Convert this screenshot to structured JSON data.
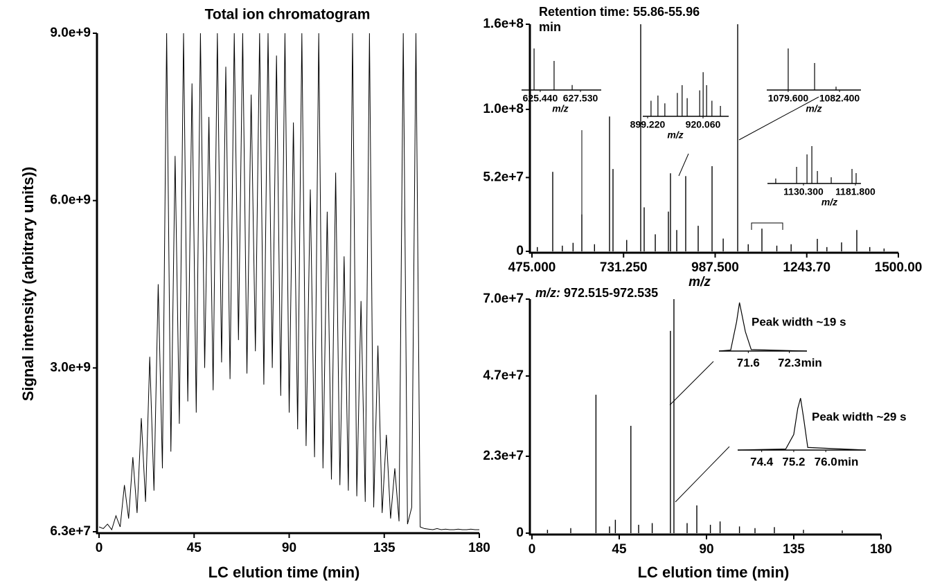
{
  "chart_data": [
    {
      "type": "line",
      "title": "Total ion chromatogram",
      "x_label": "LC elution time (min)",
      "y_label": "Signal intensity (arbitrary units))",
      "xlim": [
        0,
        180
      ],
      "xticks": [
        0,
        45,
        90,
        135,
        180
      ],
      "ylim": [
        63000000.0,
        9000000000.0
      ],
      "yticks": [
        {
          "value": 63000000.0,
          "label": "6.3e+7"
        },
        {
          "value": 3000000000.0,
          "label": "3.0e+9"
        },
        {
          "value": 6000000000.0,
          "label": "6.0e+9"
        },
        {
          "value": 9000000000.0,
          "label": "9.0e+9"
        }
      ],
      "color": "#000000",
      "grid": false,
      "x": [
        0,
        2,
        4,
        6,
        8,
        10,
        12,
        14,
        16,
        18,
        20,
        22,
        24,
        26,
        28,
        30,
        32,
        34,
        36,
        38,
        40,
        42,
        44,
        46,
        48,
        50,
        52,
        54,
        56,
        58,
        60,
        62,
        64,
        66,
        68,
        70,
        72,
        74,
        76,
        78,
        80,
        82,
        84,
        86,
        88,
        90,
        92,
        94,
        96,
        98,
        100,
        102,
        104,
        106,
        108,
        110,
        112,
        114,
        116,
        118,
        120,
        122,
        124,
        126,
        128,
        130,
        132,
        134,
        136,
        138,
        140,
        142,
        144,
        146,
        148,
        150,
        152,
        154,
        156,
        158,
        160,
        162,
        164,
        166,
        168,
        170,
        172,
        174,
        176,
        178,
        180
      ],
      "values": [
        150000000.0,
        120000000.0,
        200000000.0,
        100000000.0,
        350000000.0,
        150000000.0,
        900000000.0,
        300000000.0,
        1400000000.0,
        400000000.0,
        2100000000.0,
        600000000.0,
        3200000000.0,
        800000000.0,
        4500000000.0,
        1200000000.0,
        9000000000.0,
        1500000000.0,
        6800000000.0,
        2000000000.0,
        9000000000.0,
        2400000000.0,
        8100000000.0,
        2200000000.0,
        9000000000.0,
        3000000000.0,
        7500000000.0,
        2600000000.0,
        9000000000.0,
        3100000000.0,
        8400000000.0,
        2800000000.0,
        9000000000.0,
        3500000000.0,
        9000000000.0,
        2900000000.0,
        7900000000.0,
        3300000000.0,
        9000000000.0,
        2700000000.0,
        9000000000.0,
        3000000000.0,
        8600000000.0,
        2500000000.0,
        9000000000.0,
        2200000000.0,
        7400000000.0,
        1900000000.0,
        9000000000.0,
        1600000000.0,
        6200000000.0,
        1400000000.0,
        9000000000.0,
        1200000000.0,
        5800000000.0,
        1000000000.0,
        6500000000.0,
        900000000.0,
        5000000000.0,
        800000000.0,
        9000000000.0,
        700000000.0,
        4200000000.0,
        600000000.0,
        9000000000.0,
        500000000.0,
        3400000000.0,
        400000000.0,
        1800000000.0,
        300000000.0,
        1200000000.0,
        250000000.0,
        9000000000.0,
        200000000.0,
        500000000.0,
        9000000000.0,
        150000000.0,
        120000000.0,
        110000000.0,
        100000000.0,
        120000000.0,
        100000000.0,
        110000000.0,
        100000000.0,
        100000000.0,
        110000000.0,
        100000000.0,
        100000000.0,
        110000000.0,
        100000000.0,
        100000000.0
      ]
    },
    {
      "type": "stem",
      "title": "Retention time:  55.86-55.96 min",
      "x_label": "m/z",
      "xlim": [
        475,
        1500
      ],
      "xticks": [
        {
          "value": 475,
          "label": "475.000"
        },
        {
          "value": 731.25,
          "label": "731.250"
        },
        {
          "value": 987.5,
          "label": "987.500"
        },
        {
          "value": 1243.7,
          "label": "1243.70"
        },
        {
          "value": 1500,
          "label": "1500.00"
        }
      ],
      "ylim": [
        0,
        160000000.0
      ],
      "yticks": [
        0,
        {
          "value": 52000000.0,
          "label": "5.2e+7"
        },
        {
          "value": 100000000.0,
          "label": "1.0e+8"
        },
        {
          "value": 160000000.0,
          "label": "1.6e+8"
        }
      ],
      "color": "#000000",
      "x": [
        490,
        533.1,
        560,
        590,
        614.5,
        650,
        692.0,
        701.7,
        740,
        779.2,
        788.9,
        820,
        856.7,
        862.5,
        880,
        905.1,
        940,
        978.8,
        1010,
        1050.5,
        1080,
        1118.3,
        1160,
        1200,
        1273.3,
        1300,
        1341.1,
        1383.7,
        1420,
        1460
      ],
      "values": [
        3000000.0,
        56000000.0,
        4000000.0,
        6000000.0,
        26000000.0,
        5000000.0,
        95000000.0,
        58000000.0,
        8000000.0,
        160000000.0,
        31000000.0,
        12000000.0,
        28000000.0,
        55000000.0,
        15000000.0,
        53000000.0,
        18000000.0,
        60000000.0,
        9000000.0,
        160000000.0,
        5000000.0,
        16000000.0,
        4000000.0,
        5000000.0,
        8800000.0,
        3000000.0,
        6300000.0,
        15000000.0,
        3000000.0,
        2000000.0
      ],
      "insets": [
        {
          "type": "stem",
          "x_label": "m/z",
          "xlim": [
            624.47,
            628.61
          ],
          "xticks": [
            {
              "value": 625.44,
              "label": "625.440"
            },
            {
              "value": 627.53,
              "label": "627.530"
            }
          ],
          "ylim": [
            0,
            100
          ],
          "x": [
            625.12,
            626.16,
            627.1
          ],
          "values": [
            100,
            70,
            12
          ]
        },
        {
          "type": "stem",
          "x_label": "m/z",
          "xlim": [
            897.4,
            929.7
          ],
          "xticks": [
            {
              "value": 899.22,
              "label": "899.220"
            },
            {
              "value": 920.06,
              "label": "920.060"
            }
          ],
          "ylim": [
            0,
            100
          ],
          "x": [
            900.5,
            903.1,
            905.7,
            910.4,
            912.2,
            914.1,
            918.8,
            920.1,
            921.4,
            923.4,
            926.6
          ],
          "values": [
            30,
            40,
            25,
            45,
            60,
            35,
            50,
            85,
            60,
            30,
            20
          ]
        },
        {
          "type": "stem",
          "x_label": "m/z",
          "xlim": [
            1078.43,
            1083.57
          ],
          "xticks": [
            {
              "value": 1079.6,
              "label": "1079.600"
            },
            {
              "value": 1082.4,
              "label": "1082.400"
            }
          ],
          "ylim": [
            0,
            100
          ],
          "x": [
            1079.6,
            1081.04,
            1082.21
          ],
          "values": [
            100,
            65,
            8
          ]
        },
        {
          "type": "stem",
          "x_label": "m/z",
          "xlim": [
            1094.6,
            1187.3
          ],
          "xticks": [
            {
              "value": 1130.3,
              "label": "1130.300"
            },
            {
              "value": 1181.8,
              "label": "1181.800"
            }
          ],
          "ylim": [
            0,
            100
          ],
          "x": [
            1102.8,
            1123.5,
            1133.8,
            1138.6,
            1144.1,
            1157.8,
            1178.4,
            1182.5
          ],
          "values": [
            12,
            40,
            70,
            90,
            30,
            15,
            35,
            25
          ]
        }
      ]
    },
    {
      "type": "stem",
      "title_prefix": "m/z:",
      "title": "972.515-972.535",
      "x_label": "LC elution time (min)",
      "xlim": [
        0,
        180
      ],
      "xticks": [
        0,
        45,
        90,
        135,
        180
      ],
      "ylim": [
        0,
        70000000.0
      ],
      "yticks": [
        0,
        {
          "value": 23000000.0,
          "label": "2.3e+7"
        },
        {
          "value": 47000000.0,
          "label": "4.7e+7"
        },
        {
          "value": 70000000.0,
          "label": "7.0e+7"
        }
      ],
      "color": "#000000",
      "x": [
        8,
        20,
        33,
        40,
        43,
        51,
        55,
        62,
        71.4,
        73.2,
        80,
        85,
        92,
        97,
        107,
        115,
        125,
        140,
        160
      ],
      "values": [
        1000000.0,
        1500000.0,
        41400000.0,
        2000000.0,
        4000000.0,
        32100000.0,
        2500000.0,
        3000000.0,
        60500000.0,
        70000000.0,
        3000000.0,
        8300000.0,
        2500000.0,
        3500000.0,
        2000000.0,
        1500000.0,
        1800000.0,
        1000000.0,
        800000.0
      ],
      "insets": [
        {
          "type": "line",
          "label": "Peak width ~19 s",
          "x_label": "min",
          "xlim": [
            71.1,
            72.6
          ],
          "xticks": [
            71.6,
            72.3
          ],
          "ylim": [
            0,
            100
          ],
          "x": [
            71.1,
            71.3,
            71.4,
            71.45,
            71.55,
            71.65,
            72.6
          ],
          "values": [
            0,
            2,
            60,
            100,
            40,
            3,
            0
          ]
        },
        {
          "type": "line",
          "label": "Peak width ~29 s",
          "x_label": "min",
          "xlim": [
            73.8,
            77.0
          ],
          "xticks": [
            74.4,
            75.2,
            {
              "value": 76,
              "label": "76.0"
            }
          ],
          "ylim": [
            0,
            100
          ],
          "x": [
            73.8,
            75.0,
            75.2,
            75.3,
            75.37,
            75.45,
            75.55,
            77.0
          ],
          "values": [
            0,
            2,
            30,
            80,
            100,
            60,
            5,
            0
          ]
        }
      ]
    }
  ]
}
